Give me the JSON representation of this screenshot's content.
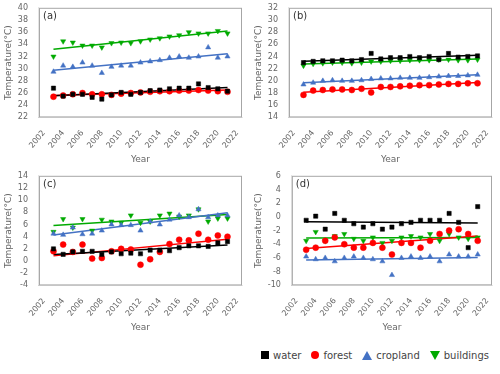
{
  "chart_data": [
    {
      "type": "scatter",
      "annotation": "(a)",
      "xlabel": "Year",
      "ylabel": "Temperature(°C)",
      "x": [
        2003,
        2004,
        2005,
        2006,
        2007,
        2008,
        2009,
        2010,
        2011,
        2012,
        2013,
        2014,
        2015,
        2016,
        2017,
        2018,
        2019,
        2020,
        2021
      ],
      "xlim": [
        2001.5,
        2022.5
      ],
      "xticks": [
        2002,
        2004,
        2006,
        2008,
        2010,
        2012,
        2014,
        2016,
        2018,
        2020,
        2022
      ],
      "ylim": [
        22,
        40
      ],
      "yticks": [
        22,
        24,
        26,
        28,
        30,
        32,
        34,
        36,
        38,
        40
      ],
      "grid": false,
      "series": [
        {
          "name": "water",
          "color": "#000000",
          "marker": "square",
          "values": [
            26.8,
            25.5,
            25.8,
            25.8,
            25.3,
            25.0,
            25.7,
            26.1,
            25.8,
            26.1,
            26.4,
            26.5,
            26.7,
            26.8,
            26.8,
            27.5,
            26.9,
            26.7,
            26.3
          ],
          "trend": [
            25.57,
            26.9
          ]
        },
        {
          "name": "forest",
          "color": "#ff0000",
          "marker": "circle",
          "values": [
            25.4,
            25.6,
            25.8,
            26.0,
            25.8,
            25.8,
            25.7,
            25.9,
            26.0,
            26.1,
            26.2,
            26.3,
            26.3,
            26.4,
            26.4,
            26.5,
            26.4,
            26.3,
            26.2
          ],
          "trend": [
            25.61,
            26.5
          ]
        },
        {
          "name": "cropland",
          "color": "#4472c4",
          "marker": "triangle-up",
          "values": [
            29.5,
            30.5,
            30.3,
            31.0,
            30.5,
            29.3,
            30.3,
            30.5,
            30.5,
            31.0,
            31.2,
            31.4,
            31.8,
            32.0,
            31.8,
            32.0,
            33.5,
            31.8,
            32.0
          ],
          "trend": [
            29.75,
            32.45
          ]
        },
        {
          "name": "buildings",
          "color": "#00aa00",
          "marker": "triangle-down",
          "values": [
            32.0,
            34.5,
            34.3,
            33.8,
            33.8,
            33.5,
            34.2,
            34.3,
            34.2,
            34.5,
            34.8,
            35.0,
            35.3,
            35.5,
            36.0,
            35.8,
            35.8,
            36.2,
            35.8
          ],
          "trend": [
            33.21,
            36.19
          ]
        }
      ]
    },
    {
      "type": "scatter",
      "annotation": "(b)",
      "xlabel": "Year",
      "ylabel": "Temperature(°C)",
      "x": [
        2003,
        2004,
        2005,
        2006,
        2007,
        2008,
        2009,
        2010,
        2011,
        2012,
        2013,
        2014,
        2015,
        2016,
        2017,
        2018,
        2019,
        2020,
        2021
      ],
      "xlim": [
        2001.5,
        2022.5
      ],
      "xticks": [
        2002,
        2004,
        2006,
        2008,
        2010,
        2012,
        2014,
        2016,
        2018,
        2020,
        2022
      ],
      "ylim": [
        14,
        32
      ],
      "yticks": [
        14,
        16,
        18,
        20,
        22,
        24,
        26,
        28,
        30,
        32
      ],
      "grid": false,
      "series": [
        {
          "name": "water",
          "color": "#000000",
          "marker": "square",
          "values": [
            23.0,
            23.2,
            23.3,
            23.3,
            23.4,
            23.3,
            23.5,
            24.5,
            23.6,
            23.8,
            23.8,
            24.0,
            23.8,
            24.0,
            23.5,
            24.5,
            23.9,
            24.0,
            24.1
          ],
          "trend": [
            23.22,
            24.2
          ]
        },
        {
          "name": "forest",
          "color": "#ff0000",
          "marker": "circle",
          "values": [
            17.7,
            18.4,
            18.5,
            18.6,
            18.6,
            18.5,
            18.7,
            18.1,
            19.0,
            19.0,
            19.1,
            19.2,
            19.3,
            19.3,
            19.4,
            19.5,
            19.5,
            19.6,
            19.6
          ],
          "trend": [
            18.13,
            19.72
          ]
        },
        {
          "name": "cropland",
          "color": "#4472c4",
          "marker": "triangle-up",
          "values": [
            19.4,
            19.7,
            20.0,
            20.1,
            20.0,
            20.0,
            20.1,
            20.3,
            20.4,
            20.4,
            20.5,
            20.5,
            20.5,
            20.6,
            20.7,
            20.8,
            20.8,
            20.9,
            21.0
          ],
          "trend": [
            19.7,
            21.01
          ]
        },
        {
          "name": "buildings",
          "color": "#00aa00",
          "marker": "triangle-down",
          "values": [
            22.5,
            22.8,
            22.9,
            23.0,
            23.0,
            22.9,
            23.0,
            23.2,
            23.2,
            23.3,
            23.3,
            23.4,
            23.4,
            23.4,
            23.5,
            23.5,
            23.4,
            23.4,
            23.5
          ],
          "trend": [
            22.77,
            23.61
          ]
        }
      ]
    },
    {
      "type": "scatter",
      "annotation": "(c)",
      "xlabel": "Year",
      "ylabel": "Temperature(°C)",
      "x": [
        2003,
        2004,
        2005,
        2006,
        2007,
        2008,
        2009,
        2010,
        2011,
        2012,
        2013,
        2014,
        2015,
        2016,
        2017,
        2018,
        2019,
        2020,
        2021
      ],
      "xlim": [
        2001.5,
        2022.5
      ],
      "xticks": [
        2002,
        2004,
        2006,
        2008,
        2010,
        2012,
        2014,
        2016,
        2018,
        2020,
        2022
      ],
      "ylim": [
        -4,
        14
      ],
      "yticks": [
        -4,
        -2,
        0,
        2,
        4,
        6,
        8,
        10,
        12,
        14
      ],
      "grid": false,
      "series": [
        {
          "name": "water",
          "color": "#000000",
          "marker": "square",
          "values": [
            2.0,
            1.1,
            1.5,
            1.6,
            1.6,
            1.1,
            1.5,
            1.2,
            1.3,
            1.2,
            1.8,
            1.8,
            1.7,
            2.2,
            2.5,
            2.5,
            2.4,
            3.0,
            3.2
          ],
          "trend": [
            1.08,
            2.62
          ]
        },
        {
          "name": "forest",
          "color": "#ff0000",
          "marker": "circle",
          "values": [
            1.6,
            2.7,
            1.5,
            2.7,
            0.4,
            0.5,
            1.6,
            2.0,
            1.9,
            -0.6,
            0.3,
            1.5,
            2.8,
            3.5,
            3.4,
            4.5,
            3.5,
            4.2,
            4.0
          ],
          "trend": [
            0.85,
            3.57
          ]
        },
        {
          "name": "cropland",
          "color": "#4472c4",
          "marker": "triangle-up",
          "values": [
            4.5,
            4.3,
            5.5,
            4.4,
            4.5,
            5.0,
            6.0,
            5.9,
            5.9,
            5.0,
            6.5,
            6.0,
            6.8,
            7.5,
            7.2,
            8.5,
            7.2,
            7.5,
            7.5
          ],
          "trend": [
            4.26,
            7.92
          ]
        },
        {
          "name": "buildings",
          "color": "#00aa00",
          "marker": "triangle-down",
          "values": [
            4.8,
            6.9,
            5.5,
            6.9,
            5.0,
            6.8,
            6.5,
            6.3,
            7.5,
            6.3,
            6.5,
            7.5,
            7.8,
            7.3,
            7.5,
            8.5,
            6.5,
            7.0,
            7.0
          ],
          "trend": [
            5.84,
            7.64
          ]
        }
      ]
    },
    {
      "type": "scatter",
      "annotation": "(d)",
      "xlabel": "Year",
      "ylabel": "Temperature(°C)",
      "x": [
        2003,
        2004,
        2005,
        2006,
        2007,
        2008,
        2009,
        2010,
        2011,
        2012,
        2013,
        2014,
        2015,
        2016,
        2017,
        2018,
        2019,
        2020,
        2021
      ],
      "xlim": [
        2001.5,
        2022.5
      ],
      "xticks": [
        2002,
        2004,
        2006,
        2008,
        2010,
        2012,
        2014,
        2016,
        2018,
        2020,
        2022
      ],
      "ylim": [
        -10,
        6
      ],
      "yticks": [
        -10,
        -8,
        -6,
        -4,
        -2,
        0,
        2,
        4,
        6
      ],
      "grid": false,
      "legend": "bottom",
      "series": [
        {
          "name": "water",
          "color": "#000000",
          "marker": "square",
          "values": [
            -0.5,
            0.1,
            -1.8,
            0.5,
            -0.5,
            -1.0,
            -1.5,
            -1.0,
            -1.8,
            -1.5,
            -1.0,
            -0.8,
            -0.5,
            -0.5,
            -0.5,
            0.5,
            -0.8,
            -4.5,
            1.5
          ],
          "trend": [
            -0.73,
            -0.91
          ]
        },
        {
          "name": "forest",
          "color": "#ff0000",
          "marker": "circle",
          "values": [
            -4.8,
            -4.5,
            -3.5,
            -3.0,
            -4.0,
            -4.5,
            -4.5,
            -3.8,
            -4.5,
            -5.5,
            -3.8,
            -3.8,
            -4.5,
            -3.5,
            -2.5,
            -2.0,
            -1.8,
            -2.5,
            -3.5
          ],
          "trend": [
            -4.62,
            -2.8
          ]
        },
        {
          "name": "cropland",
          "color": "#4472c4",
          "marker": "triangle-up",
          "values": [
            -5.8,
            -6.2,
            -6.0,
            -6.5,
            -6.0,
            -5.8,
            -6.0,
            -6.2,
            -6.5,
            -8.5,
            -6.0,
            -5.8,
            -6.0,
            -5.8,
            -6.5,
            -5.5,
            -5.8,
            -5.8,
            -5.5
          ],
          "trend": [
            -6.31,
            -5.92
          ]
        },
        {
          "name": "buildings",
          "color": "#00aa00",
          "marker": "triangle-down",
          "values": [
            -3.5,
            -2.2,
            -3.5,
            -2.8,
            -2.5,
            -3.2,
            -3.5,
            -3.0,
            -3.8,
            -3.5,
            -3.0,
            -2.8,
            -3.0,
            -2.5,
            -3.5,
            -2.5,
            -3.0,
            -3.2,
            -3.0
          ],
          "trend": [
            -3.09,
            -3.02
          ]
        }
      ]
    }
  ]
}
